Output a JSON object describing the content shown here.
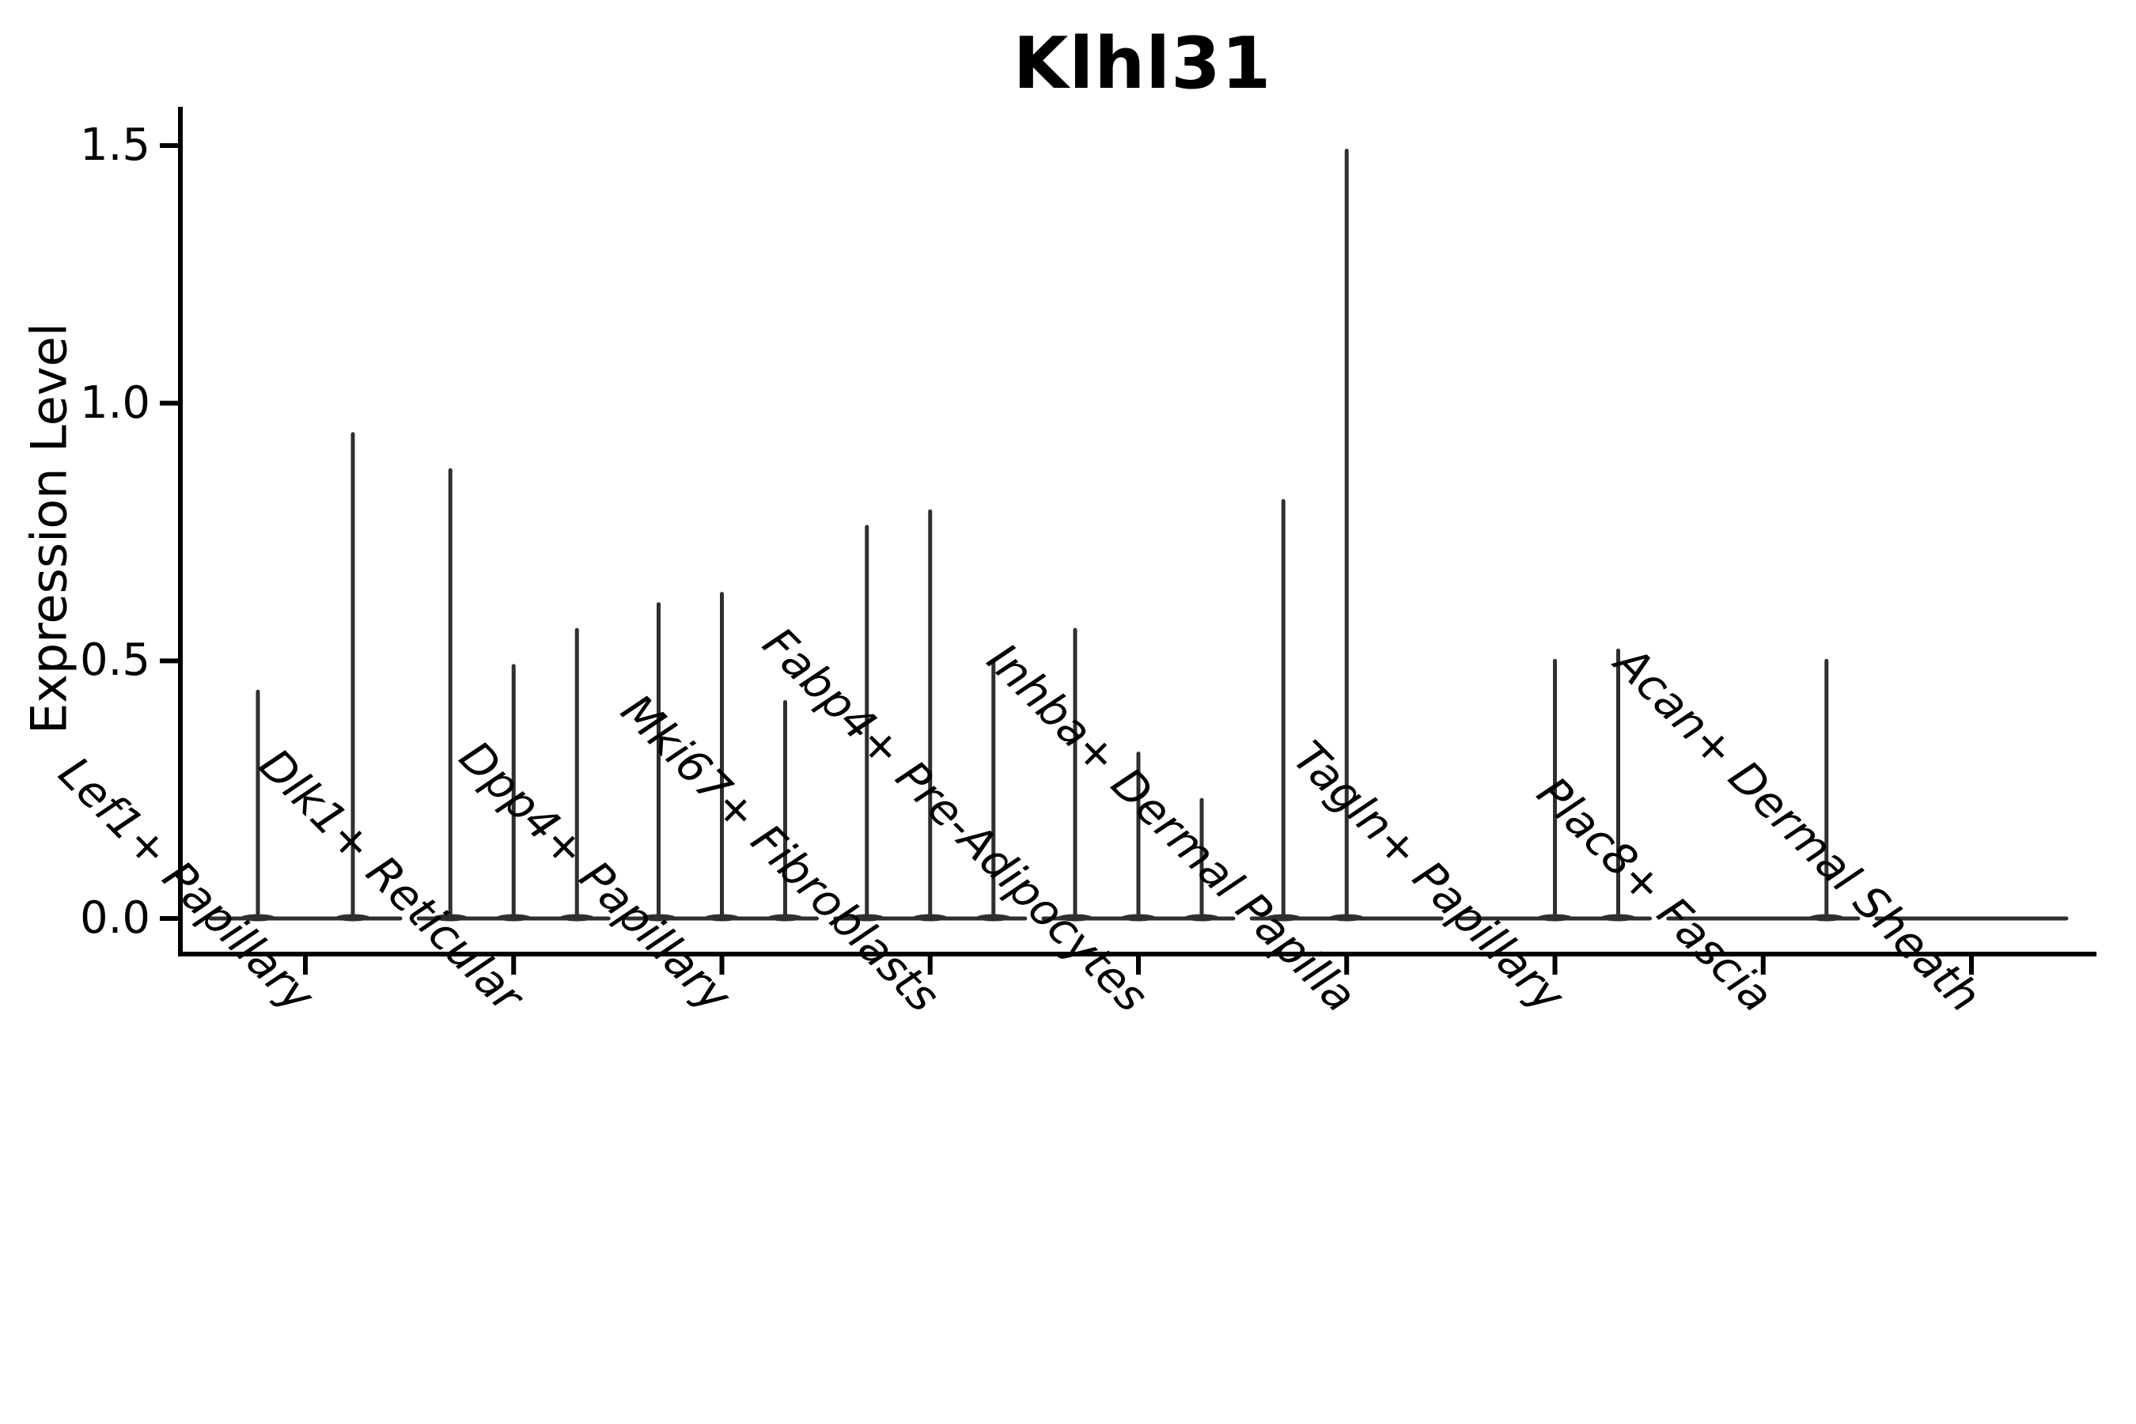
{
  "chart_data": {
    "type": "violin",
    "title": "Klhl31",
    "xlabel": "",
    "ylabel": "Expression Level",
    "ylim": [
      0,
      1.5
    ],
    "yticks": [
      0.0,
      0.5,
      1.0,
      1.5
    ],
    "ytick_labels": [
      "0.0",
      "0.5",
      "1.0",
      "1.5"
    ],
    "grid": "off",
    "legend": "none",
    "x_label_rotation": 45,
    "x_label_style": "italic",
    "categories": [
      "Lef1+ Papillary",
      "Dlk1+ Reticular",
      "Dpp4+ Papillary",
      "Mki67+ Fibroblasts",
      "Fabp4+ Pre-Adipocytes",
      "Inhba+ Dermal Papilla",
      "Tagln+ Papillary",
      "Plac8+ Fascia",
      "Acan+ Dermal Sheath"
    ],
    "series": [
      {
        "name": "Lef1+ Papillary",
        "violin_max_values": [
          0.44,
          0.94
        ]
      },
      {
        "name": "Dlk1+ Reticular",
        "violin_max_values": [
          0.87,
          0.49,
          0.56
        ]
      },
      {
        "name": "Dpp4+ Papillary",
        "violin_max_values": [
          0.61,
          0.63,
          0.42
        ]
      },
      {
        "name": "Mki67+ Fibroblasts",
        "violin_max_values": [
          0.76,
          0.79,
          0.5
        ]
      },
      {
        "name": "Fabp4+ Pre-Adipocytes",
        "violin_max_values": [
          0.56,
          0.32,
          0.23
        ]
      },
      {
        "name": "Inhba+ Dermal Papilla",
        "violin_max_values": [
          0.81,
          1.49,
          0.0
        ]
      },
      {
        "name": "Tagln+ Papillary",
        "violin_max_values": [
          0.0,
          0.5,
          0.52
        ]
      },
      {
        "name": "Plac8+ Fascia",
        "violin_max_values": [
          0.0,
          0.0,
          0.5
        ]
      },
      {
        "name": "Acan+ Dermal Sheath",
        "violin_max_values": [
          0.0,
          0.0,
          0.0
        ]
      }
    ],
    "colors": {
      "violin_line": "#2f2f2f",
      "axis": "#000000",
      "background": "#ffffff"
    }
  }
}
